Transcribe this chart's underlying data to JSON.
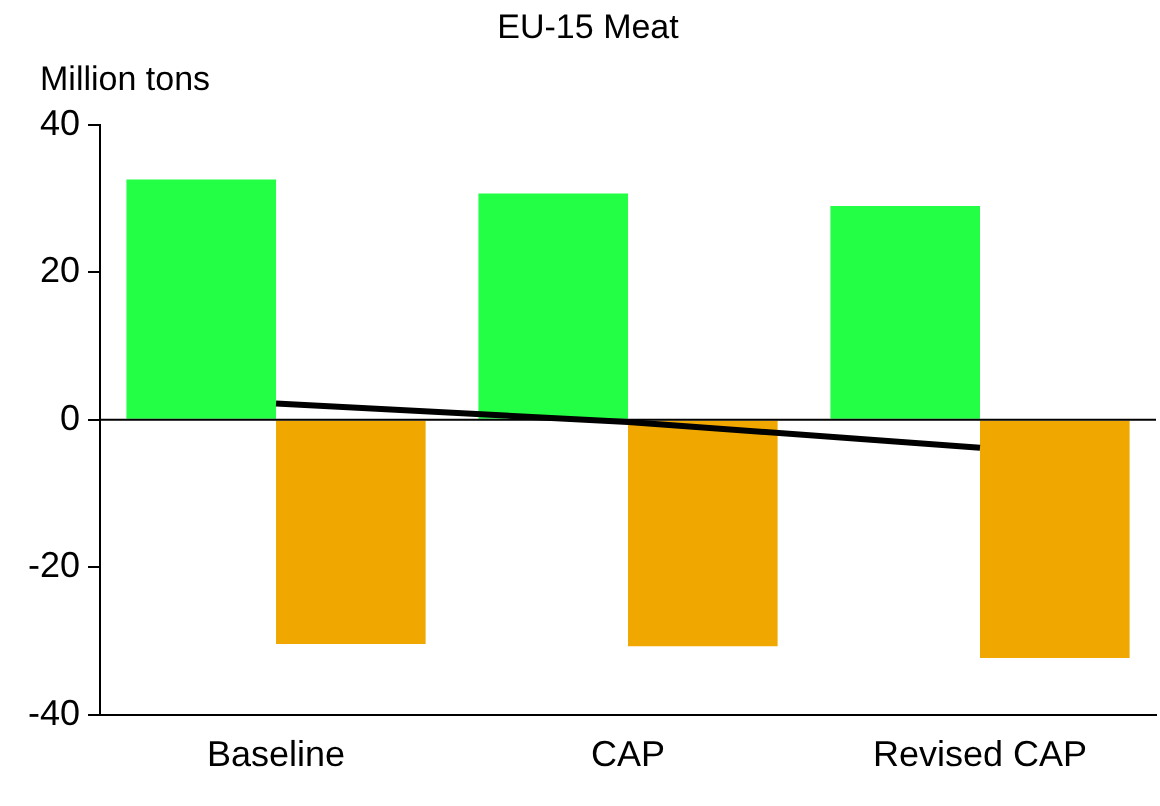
{
  "chart_data": {
    "type": "bar",
    "title": "EU-15 Meat",
    "ylabel": "Million tons",
    "categories": [
      "Baseline",
      "CAP",
      "Revised CAP"
    ],
    "series": [
      {
        "color": "#22ff44",
        "values": [
          32.6,
          30.7,
          29.0
        ]
      },
      {
        "color": "#f0a800",
        "values": [
          -30.4,
          -30.7,
          -32.3
        ]
      },
      {
        "type": "line",
        "color": "#000000",
        "values": [
          2.2,
          -0.3,
          -3.8
        ]
      }
    ],
    "ylim": [
      -40,
      40
    ],
    "yticks": [
      -40,
      -20,
      0,
      20,
      40
    ],
    "grid": false,
    "legend": false,
    "marker": "none",
    "ref_lines": [
      {
        "axis": "y",
        "value": 0,
        "color": "#000000"
      }
    ]
  }
}
